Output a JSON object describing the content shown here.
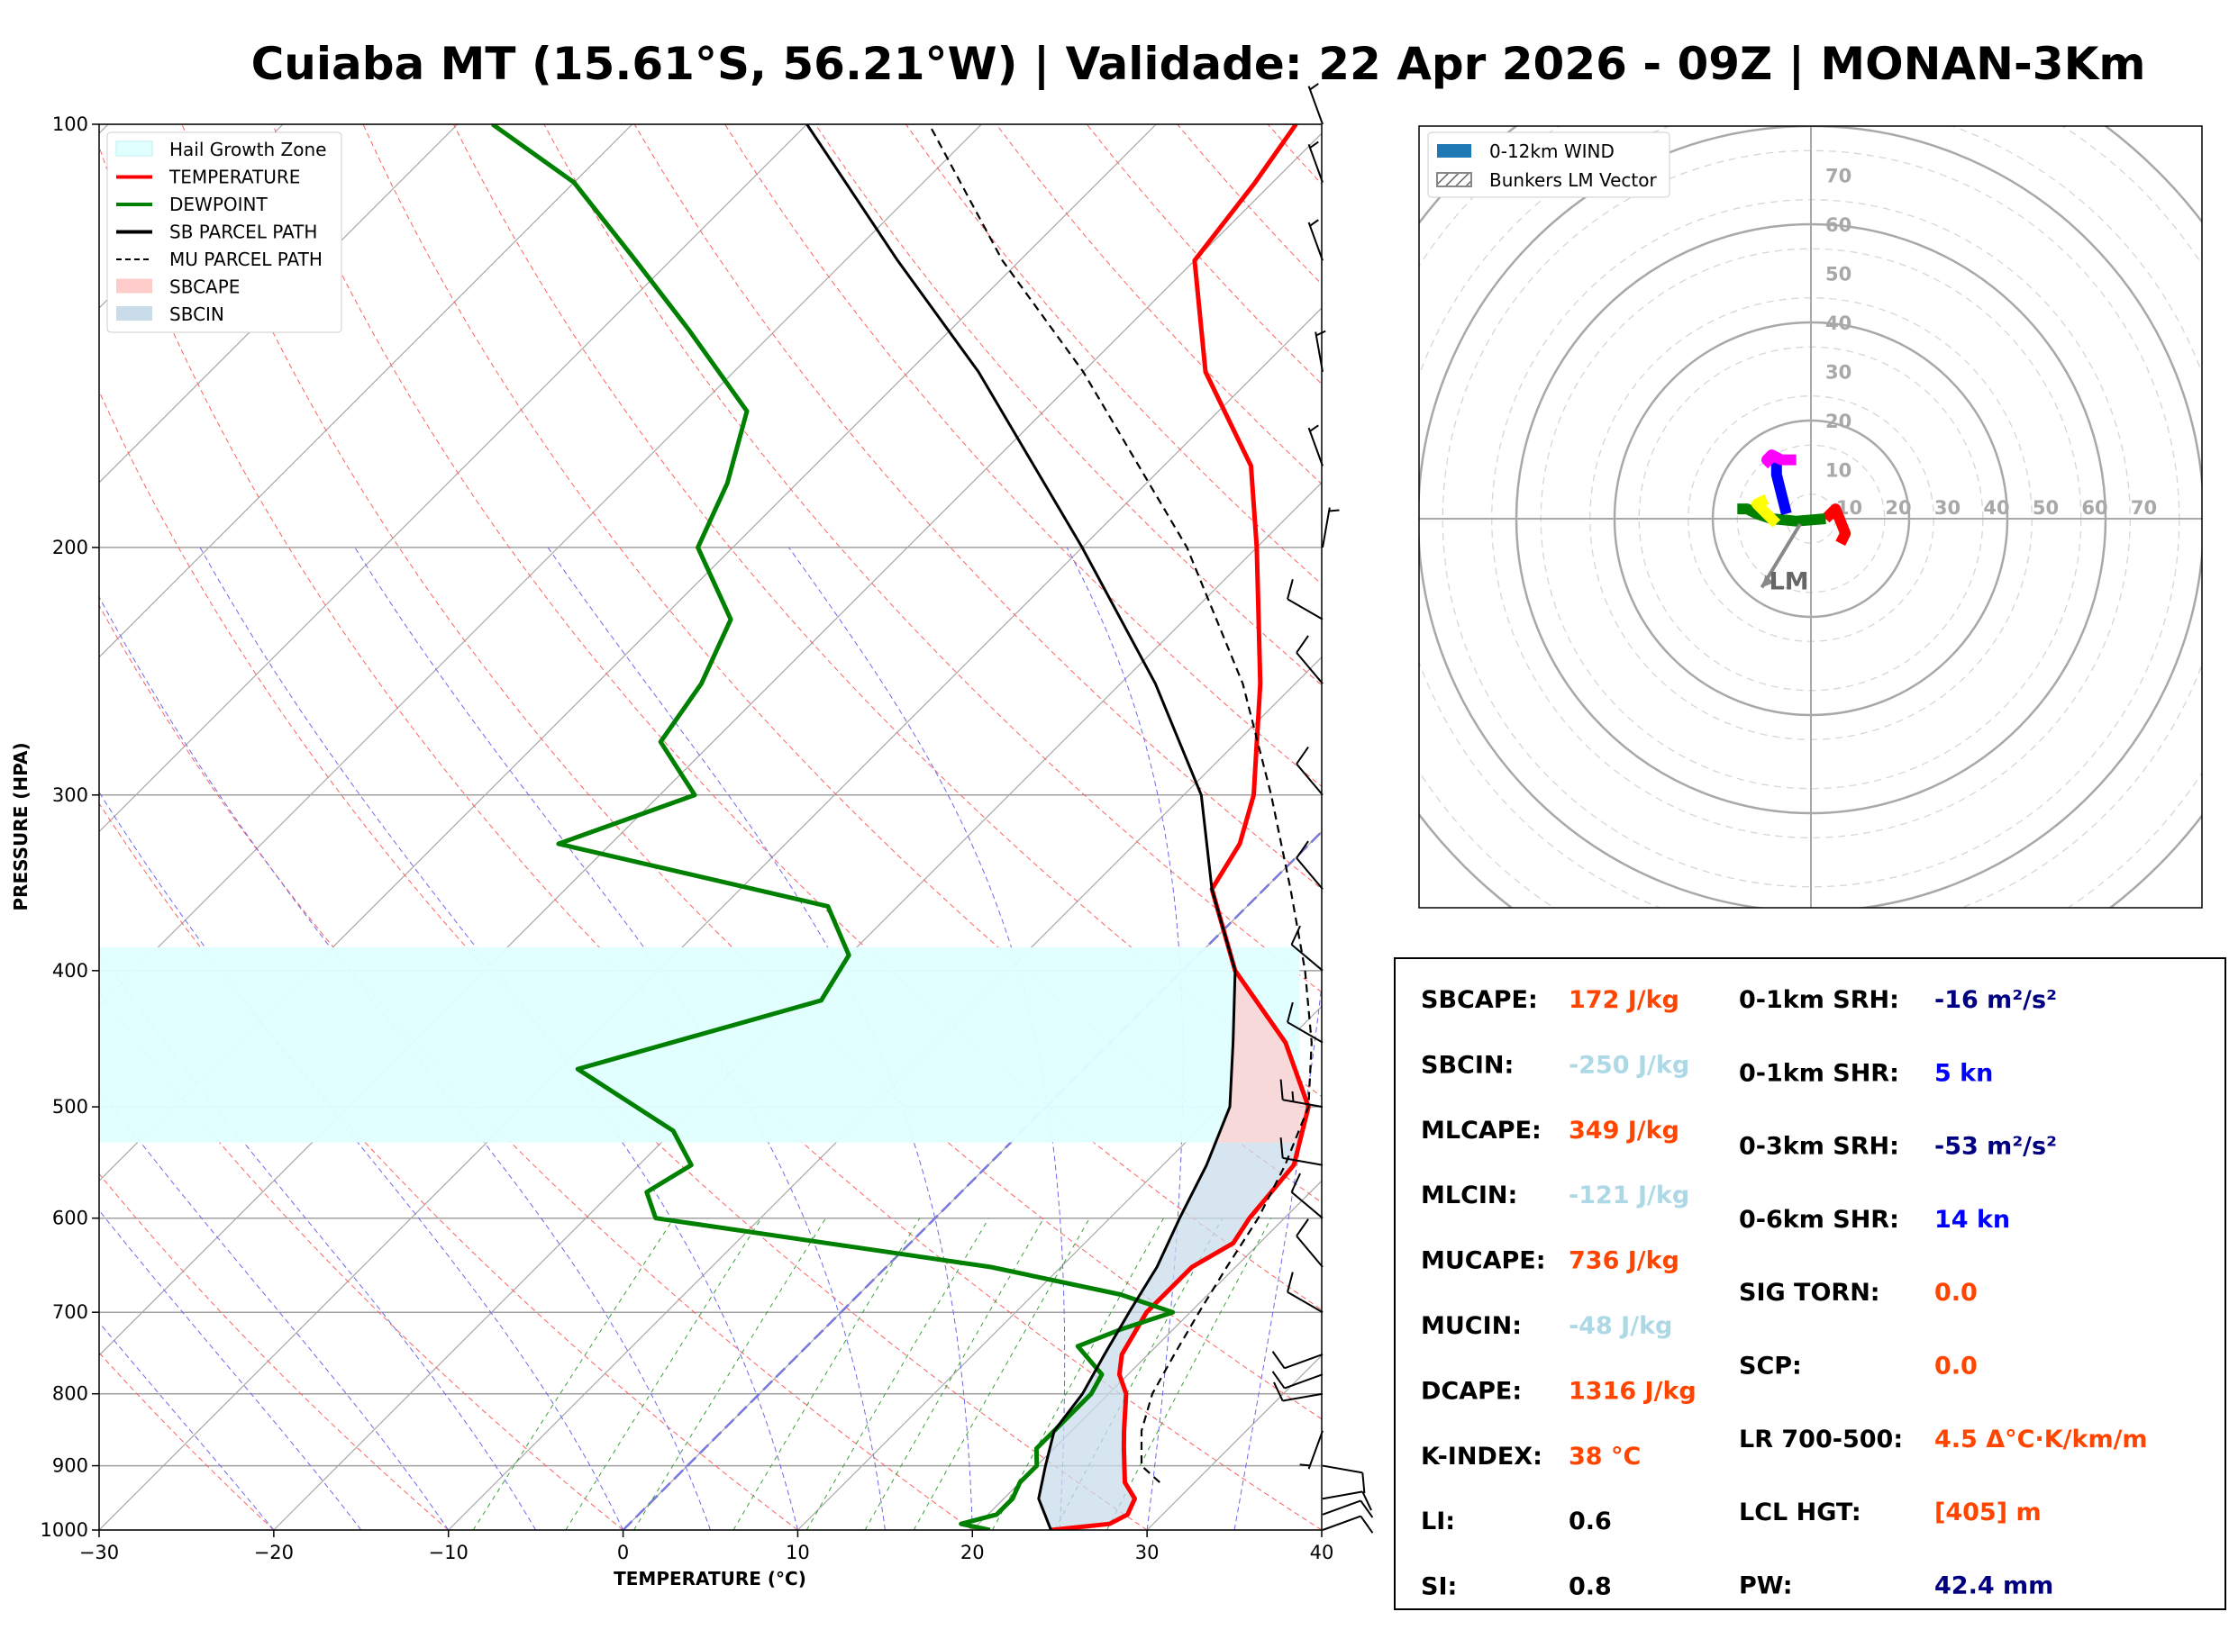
{
  "title": "Cuiaba MT (15.61°S, 56.21°W) | Validade: 22 Apr 2026 - 09Z | MONAN-3Km",
  "chart_data": [
    {
      "type": "skewt",
      "xlabel": "TEMPERATURE (°C)",
      "ylabel": "PRESSURE (HPA)",
      "xlim": [
        -30,
        40
      ],
      "ylim": [
        1000,
        100
      ],
      "y_scale": "log",
      "x_ticks": [
        "−30",
        "−20",
        "−10",
        "0",
        "10",
        "20",
        "30",
        "40"
      ],
      "y_ticks": [
        "100",
        "200",
        "300",
        "400",
        "500",
        "600",
        "700",
        "800",
        "900",
        "1000"
      ],
      "legend": {
        "placement": "top-left",
        "entries": [
          {
            "label": "Hail Growth Zone",
            "color": "#e0ffff",
            "style": "patch"
          },
          {
            "label": "TEMPERATURE",
            "color": "#ff0000",
            "style": "line"
          },
          {
            "label": "DEWPOINT",
            "color": "#008000",
            "style": "line"
          },
          {
            "label": "SB PARCEL PATH",
            "color": "#000000",
            "style": "line"
          },
          {
            "label": "MU PARCEL PATH",
            "color": "#000000",
            "style": "dashed"
          },
          {
            "label": "SBCAPE",
            "color": "#ffcccc",
            "style": "patch"
          },
          {
            "label": "SBCIN",
            "color": "#c8dcea",
            "style": "patch"
          }
        ]
      },
      "series": [
        {
          "name": "TEMPERATURE",
          "color": "#ff0000",
          "points": [
            [
              1000,
              24.5
            ],
            [
              990,
              27.5
            ],
            [
              975,
              28
            ],
            [
              950,
              27.5
            ],
            [
              925,
              26
            ],
            [
              875,
              24
            ],
            [
              850,
              23
            ],
            [
              800,
              21
            ],
            [
              775,
              19.5
            ],
            [
              750,
              18.5
            ],
            [
              700,
              17.5
            ],
            [
              650,
              17.5
            ],
            [
              625,
              18.5
            ],
            [
              600,
              18
            ],
            [
              550,
              17.5
            ],
            [
              500,
              15
            ],
            [
              450,
              10
            ],
            [
              400,
              3
            ],
            [
              350,
              -3
            ],
            [
              325,
              -4
            ],
            [
              300,
              -6
            ],
            [
              250,
              -12
            ],
            [
              200,
              -20
            ],
            [
              175,
              -25
            ],
            [
              150,
              -33
            ],
            [
              125,
              -40
            ],
            [
              110,
              -41
            ],
            [
              100,
              -42
            ]
          ]
        },
        {
          "name": "DEWPOINT",
          "color": "#008000",
          "points": [
            [
              1000,
              21
            ],
            [
              990,
              19
            ],
            [
              975,
              20.5
            ],
            [
              950,
              20.5
            ],
            [
              925,
              20
            ],
            [
              900,
              20
            ],
            [
              875,
              19
            ],
            [
              850,
              19
            ],
            [
              800,
              19
            ],
            [
              775,
              18.5
            ],
            [
              740,
              15.5
            ],
            [
              720,
              17
            ],
            [
              700,
              19
            ],
            [
              680,
              15
            ],
            [
              650,
              6
            ],
            [
              600,
              -16
            ],
            [
              575,
              -18
            ],
            [
              550,
              -17
            ],
            [
              520,
              -20
            ],
            [
              470,
              -29
            ],
            [
              420,
              -19
            ],
            [
              390,
              -20
            ],
            [
              360,
              -24
            ],
            [
              325,
              -43
            ],
            [
              300,
              -38
            ],
            [
              275,
              -43
            ],
            [
              250,
              -44
            ],
            [
              225,
              -46
            ],
            [
              200,
              -52
            ],
            [
              180,
              -54
            ],
            [
              160,
              -57
            ],
            [
              140,
              -65
            ],
            [
              125,
              -72
            ],
            [
              110,
              -80
            ],
            [
              100,
              -88
            ]
          ]
        },
        {
          "name": "SB PARCEL PATH",
          "color": "#000000",
          "points": [
            [
              1000,
              24.5
            ],
            [
              950,
              22
            ],
            [
              900,
              20.5
            ],
            [
              850,
              19
            ],
            [
              800,
              18.5
            ],
            [
              750,
              17.5
            ],
            [
              700,
              16.5
            ],
            [
              650,
              15.5
            ],
            [
              600,
              14
            ],
            [
              550,
              12.5
            ],
            [
              500,
              10.5
            ],
            [
              450,
              7
            ],
            [
              400,
              3
            ],
            [
              350,
              -3
            ],
            [
              300,
              -9
            ],
            [
              250,
              -18
            ],
            [
              200,
              -30
            ],
            [
              150,
              -46
            ],
            [
              125,
              -57
            ],
            [
              100,
              -70
            ]
          ]
        },
        {
          "name": "MU PARCEL PATH",
          "color": "#000000",
          "dashed": true,
          "points": [
            [
              925,
              28
            ],
            [
              900,
              26
            ],
            [
              850,
              24
            ],
            [
              800,
              22.5
            ],
            [
              750,
              21.5
            ],
            [
              700,
              20.5
            ],
            [
              650,
              19.5
            ],
            [
              600,
              18.5
            ],
            [
              550,
              17
            ],
            [
              500,
              15
            ],
            [
              450,
              11.5
            ],
            [
              400,
              7
            ],
            [
              350,
              1.5
            ],
            [
              300,
              -5
            ],
            [
              250,
              -13
            ],
            [
              200,
              -24
            ],
            [
              150,
              -40
            ],
            [
              125,
              -51
            ],
            [
              100,
              -63
            ]
          ]
        }
      ],
      "hail_growth_zone_hpa": [
        385,
        530
      ],
      "sbcape_band_hpa": [
        385,
        530
      ],
      "sbcin_band_hpa": [
        530,
        1000
      ],
      "wind_barbs": [
        {
          "p": 1000,
          "dir": 70,
          "spd": 10
        },
        {
          "p": 975,
          "dir": 70,
          "spd": 10
        },
        {
          "p": 950,
          "dir": 80,
          "spd": 10
        },
        {
          "p": 900,
          "dir": 100,
          "spd": 10
        },
        {
          "p": 850,
          "dir": 200,
          "spd": 5
        },
        {
          "p": 800,
          "dir": 260,
          "spd": 10
        },
        {
          "p": 775,
          "dir": 250,
          "spd": 10
        },
        {
          "p": 750,
          "dir": 250,
          "spd": 10
        },
        {
          "p": 700,
          "dir": 300,
          "spd": 10
        },
        {
          "p": 650,
          "dir": 320,
          "spd": 10
        },
        {
          "p": 600,
          "dir": 310,
          "spd": 10
        },
        {
          "p": 550,
          "dir": 280,
          "spd": 10
        },
        {
          "p": 500,
          "dir": 280,
          "spd": 15
        },
        {
          "p": 450,
          "dir": 300,
          "spd": 10
        },
        {
          "p": 400,
          "dir": 310,
          "spd": 10
        },
        {
          "p": 350,
          "dir": 320,
          "spd": 10
        },
        {
          "p": 300,
          "dir": 320,
          "spd": 10
        },
        {
          "p": 250,
          "dir": 320,
          "spd": 10
        },
        {
          "p": 225,
          "dir": 300,
          "spd": 10
        },
        {
          "p": 200,
          "dir": 10,
          "spd": 5
        },
        {
          "p": 175,
          "dir": 340,
          "spd": 5
        },
        {
          "p": 150,
          "dir": 350,
          "spd": 5
        },
        {
          "p": 125,
          "dir": 340,
          "spd": 5
        },
        {
          "p": 110,
          "dir": 340,
          "spd": 5
        },
        {
          "p": 100,
          "dir": 340,
          "spd": 5
        }
      ]
    },
    {
      "type": "hodograph",
      "rings_kn": [
        10,
        20,
        30,
        40,
        50,
        60,
        70
      ],
      "tick_labels": [
        "10",
        "20",
        "30",
        "40",
        "50",
        "60",
        "70"
      ],
      "legend": {
        "placement": "top-left",
        "entries": [
          {
            "label": "0-12km WIND",
            "color": "#1f77b4"
          },
          {
            "label": "Bunkers LM Vector",
            "color": "#888888"
          }
        ]
      },
      "segments": [
        {
          "color": "#ff0000",
          "points": [
            [
              6,
              -5
            ],
            [
              7,
              -3
            ],
            [
              5,
              2
            ],
            [
              3,
              0
            ]
          ]
        },
        {
          "color": "#008000",
          "points": [
            [
              3,
              0
            ],
            [
              -3,
              -0.5
            ],
            [
              -8,
              0
            ],
            [
              -11,
              1
            ],
            [
              -13,
              2
            ],
            [
              -15,
              2
            ]
          ]
        },
        {
          "color": "#ffff00",
          "points": [
            [
              -7,
              -1
            ],
            [
              -10,
              2
            ],
            [
              -11,
              3
            ],
            [
              -9,
              4
            ]
          ]
        },
        {
          "color": "#0000ff",
          "points": [
            [
              -5,
              1
            ],
            [
              -6,
              5
            ],
            [
              -7,
              9
            ],
            [
              -7,
              12
            ],
            [
              -8,
              13
            ]
          ]
        },
        {
          "color": "#ff00ff",
          "points": [
            [
              -8,
              11
            ],
            [
              -9,
              12
            ],
            [
              -8,
              13
            ],
            [
              -6,
              12
            ],
            [
              -3,
              12
            ]
          ]
        }
      ],
      "bunkers_lm": {
        "label": "LM",
        "u": -10,
        "v": -14
      }
    }
  ],
  "indices": {
    "left": [
      {
        "label": "SBCAPE:",
        "value": "172 J/kg",
        "color": "#ff4500"
      },
      {
        "label": "SBCIN:",
        "value": "-250 J/kg",
        "color": "#add8e6"
      },
      {
        "label": "MLCAPE:",
        "value": "349 J/kg",
        "color": "#ff4500"
      },
      {
        "label": "MLCIN:",
        "value": "-121 J/kg",
        "color": "#add8e6"
      },
      {
        "label": "MUCAPE:",
        "value": "736 J/kg",
        "color": "#ff4500"
      },
      {
        "label": "MUCIN:",
        "value": "-48 J/kg",
        "color": "#add8e6"
      },
      {
        "label": "DCAPE:",
        "value": "1316 J/kg",
        "color": "#ff4500"
      },
      {
        "label": "K-INDEX:",
        "value": "38 °C",
        "color": "#ff4500"
      },
      {
        "label": "LI:",
        "value": "0.6",
        "color": "#000000"
      },
      {
        "label": "SI:",
        "value": "0.8",
        "color": "#000000"
      }
    ],
    "right": [
      {
        "label": "0-1km SRH:",
        "value": "-16 m²/s²",
        "color": "#000080"
      },
      {
        "label": "0-1km SHR:",
        "value": "5 kn",
        "color": "#0000ff"
      },
      {
        "label": "0-3km SRH:",
        "value": "-53 m²/s²",
        "color": "#000080"
      },
      {
        "label": "0-6km SHR:",
        "value": "14 kn",
        "color": "#0000ff"
      },
      {
        "label": "SIG TORN:",
        "value": "0.0",
        "color": "#ff4500"
      },
      {
        "label": "SCP:",
        "value": "0.0",
        "color": "#ff4500"
      },
      {
        "label": "LR 700-500:",
        "value": "4.5 Δ°C·K/km/m",
        "color": "#ff4500"
      },
      {
        "label": "LCL HGT:",
        "value": "[405] m",
        "color": "#ff4500"
      },
      {
        "label": "PW:",
        "value": "42.4 mm",
        "color": "#000080"
      }
    ]
  }
}
